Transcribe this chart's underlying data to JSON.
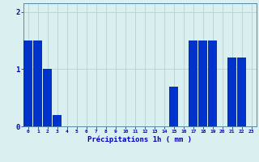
{
  "values": [
    1.5,
    1.5,
    1.0,
    0.2,
    0,
    0,
    0,
    0,
    0,
    0,
    0,
    0,
    0,
    0,
    0,
    0.7,
    0,
    1.5,
    1.5,
    1.5,
    0,
    1.2,
    1.2,
    0
  ],
  "xlabel": "Précipitations 1h ( mm )",
  "ylim": [
    0,
    2.15
  ],
  "yticks": [
    0,
    1,
    2
  ],
  "bar_color": "#0033cc",
  "background_color": "#daf0f0",
  "grid_color": "#b0d4d4",
  "axis_color": "#5588aa",
  "tick_label_color": "#0000bb",
  "xlabel_color": "#0000bb"
}
